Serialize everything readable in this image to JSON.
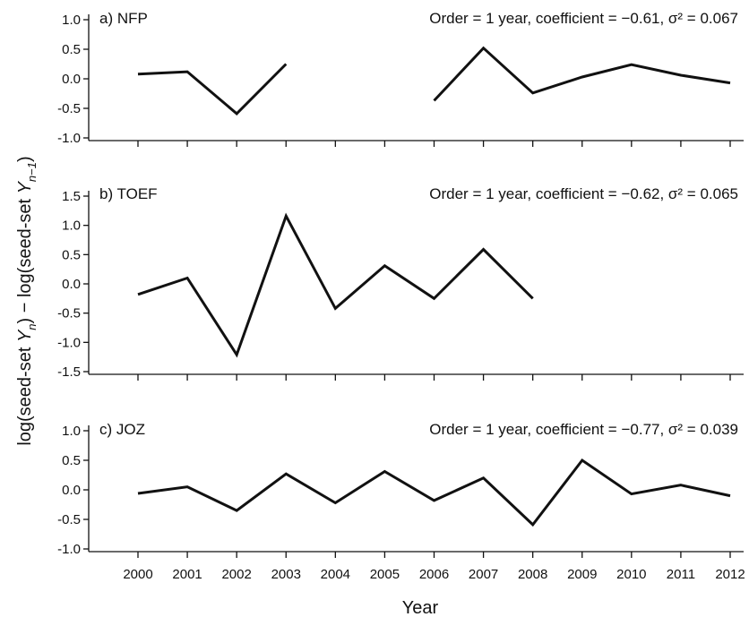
{
  "chart_data": {
    "type": "line",
    "xlabel": "Year",
    "ylabel_parts": {
      "pre1": "log(seed-set ",
      "var1": "Y",
      "sub1": "n",
      "mid": ") − log(seed-set ",
      "var2": "Y",
      "sub2": "n−1",
      "post": ")"
    },
    "x": [
      2000,
      2001,
      2002,
      2003,
      2004,
      2005,
      2006,
      2007,
      2008,
      2009,
      2010,
      2011,
      2012
    ],
    "x_tick_labels": [
      "2000",
      "2001",
      "2002",
      "2003",
      "2004",
      "2005",
      "2006",
      "2007",
      "2008",
      "2009",
      "2010",
      "2011",
      "2012"
    ],
    "panels": [
      {
        "label": "a) NFP",
        "stats": "Order = 1 year, coefficient = −0.61, σ² = 0.067",
        "ylim": [
          -1.0,
          1.0
        ],
        "yticks": [
          -1.0,
          -0.5,
          0.0,
          0.5,
          1.0
        ],
        "ytick_labels": [
          "-1.0",
          "-0.5",
          "0.0",
          "0.5",
          "1.0"
        ],
        "series": [
          {
            "values": [
              0.08,
              0.12,
              -0.59,
              0.25,
              null,
              null,
              -0.37,
              0.52,
              -0.24,
              0.03,
              0.24,
              0.06,
              -0.07
            ]
          }
        ]
      },
      {
        "label": "b) TOEF",
        "stats": "Order = 1 year, coefficient = −0.62, σ² = 0.065",
        "ylim": [
          -1.5,
          1.5
        ],
        "yticks": [
          -1.5,
          -1.0,
          -0.5,
          0.0,
          0.5,
          1.0,
          1.5
        ],
        "ytick_labels": [
          "-1.5",
          "-1.0",
          "-0.5",
          "0.0",
          "0.5",
          "1.0",
          "1.5"
        ],
        "series": [
          {
            "values": [
              -0.18,
              0.1,
              -1.21,
              1.16,
              -0.42,
              0.31,
              -0.25,
              0.59,
              -0.25,
              null,
              null,
              null,
              null
            ]
          }
        ]
      },
      {
        "label": "c) JOZ",
        "stats": "Order = 1 year, coefficient = −0.77, σ² = 0.039",
        "ylim": [
          -1.0,
          1.0
        ],
        "yticks": [
          -1.0,
          -0.5,
          0.0,
          0.5,
          1.0
        ],
        "ytick_labels": [
          "-1.0",
          "-0.5",
          "0.0",
          "0.5",
          "1.0"
        ],
        "series": [
          {
            "values": [
              -0.06,
              0.05,
              -0.35,
              0.27,
              -0.22,
              0.31,
              -0.18,
              0.2,
              -0.59,
              0.5,
              -0.07,
              0.08,
              -0.1
            ]
          }
        ]
      }
    ],
    "grid": false
  }
}
